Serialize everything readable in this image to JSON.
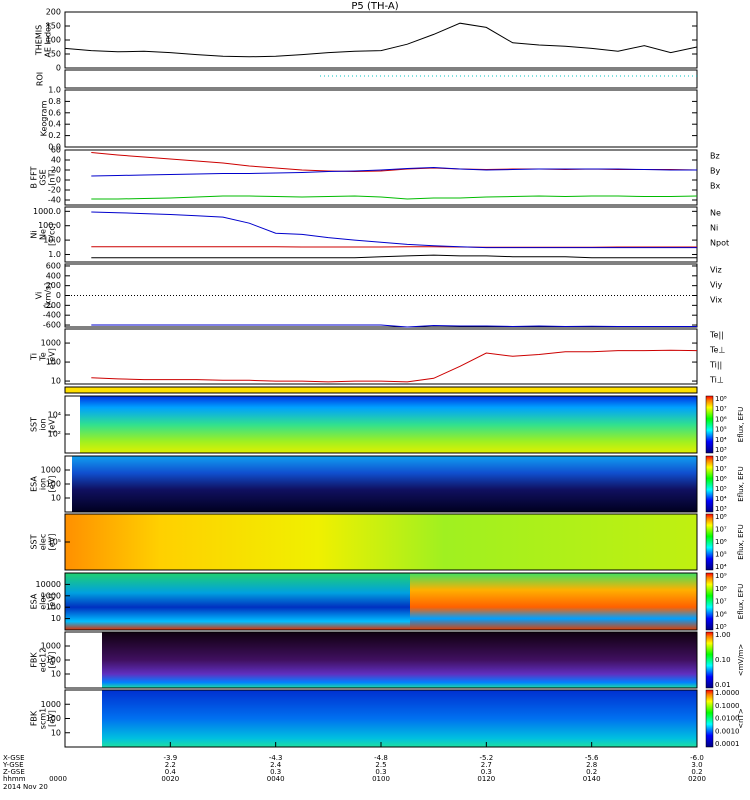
{
  "title": "P5 (TH-A)",
  "roi_label": "ROI",
  "chart_data": [
    {
      "type": "line",
      "ylabel": [
        "THEMIS",
        "AE Index"
      ],
      "ylim": [
        0,
        200
      ],
      "yticks": [
        0,
        50,
        100,
        150,
        200
      ],
      "xlim": [
        0,
        120
      ],
      "x": [
        0,
        5,
        10,
        15,
        20,
        25,
        30,
        35,
        40,
        45,
        50,
        55,
        60,
        65,
        70,
        75,
        80,
        85,
        90,
        95,
        100,
        105,
        110,
        115,
        120
      ],
      "series": [
        {
          "color": "#000000",
          "values": [
            70,
            62,
            58,
            60,
            55,
            48,
            42,
            40,
            42,
            48,
            55,
            60,
            62,
            85,
            120,
            160,
            145,
            90,
            82,
            78,
            70,
            60,
            80,
            55,
            75
          ]
        }
      ]
    },
    {
      "type": "line",
      "ylabel": [
        "Keogram"
      ],
      "ylim": [
        0,
        1
      ],
      "yticks": [
        {
          "value": 0,
          "label": "0.0"
        },
        {
          "value": 0.2,
          "label": "0.2"
        },
        {
          "value": 0.4,
          "label": "0.4"
        },
        {
          "value": 0.6,
          "label": "0.6"
        },
        {
          "value": 0.8,
          "label": "0.8"
        },
        {
          "value": 1,
          "label": "1.0"
        }
      ],
      "xlim": [
        0,
        120
      ],
      "x": [],
      "series": []
    },
    {
      "type": "line",
      "ylabel": [
        "B FFT",
        "GSE",
        "[nT]"
      ],
      "ylim": [
        -50,
        60
      ],
      "yticks": [
        -40,
        -20,
        0,
        20,
        40,
        60
      ],
      "xlim": [
        0,
        120
      ],
      "x": [
        0,
        5,
        10,
        15,
        20,
        25,
        30,
        35,
        40,
        45,
        50,
        55,
        60,
        65,
        70,
        75,
        80,
        85,
        90,
        95,
        100,
        105,
        110,
        115,
        120
      ],
      "series": [
        {
          "name": "Bz",
          "color": "#cc0000",
          "values": [
            null,
            55,
            50,
            46,
            42,
            38,
            34,
            28,
            24,
            20,
            18,
            17,
            18,
            22,
            24,
            22,
            21,
            22,
            22,
            21,
            22,
            21,
            21,
            21,
            20
          ]
        },
        {
          "name": "By",
          "color": "#00bb00",
          "values": [
            null,
            -38,
            -38,
            -37,
            -36,
            -34,
            -32,
            -32,
            -33,
            -34,
            -33,
            -32,
            -34,
            -38,
            -36,
            -36,
            -34,
            -33,
            -32,
            -33,
            -32,
            -32,
            -33,
            -33,
            -32
          ]
        },
        {
          "name": "Bx",
          "color": "#0000cc",
          "values": [
            null,
            8,
            9,
            10,
            11,
            12,
            13,
            13,
            14,
            15,
            17,
            18,
            20,
            23,
            25,
            22,
            20,
            21,
            22,
            22,
            22,
            22,
            21,
            20,
            20
          ]
        }
      ]
    },
    {
      "type": "line",
      "ylabel": [
        "Ni",
        "Ne",
        "[1/cc]"
      ],
      "log": true,
      "ylim": [
        0.3,
        2000
      ],
      "yticks": [
        {
          "value": 1,
          "label": "1.0"
        },
        {
          "value": 10,
          "label": "10.0"
        },
        {
          "value": 100,
          "label": "100.0"
        },
        {
          "value": 1000,
          "label": "1000.0"
        }
      ],
      "xlim": [
        0,
        120
      ],
      "x": [
        0,
        5,
        10,
        15,
        20,
        25,
        30,
        35,
        40,
        45,
        50,
        55,
        60,
        65,
        70,
        75,
        80,
        85,
        90,
        95,
        100,
        105,
        110,
        115,
        120
      ],
      "series": [
        {
          "name": "Ne",
          "color": "#cc0000",
          "values": [
            null,
            3.5,
            3.5,
            3.5,
            3.5,
            3.5,
            3.5,
            3.4,
            3.4,
            3.3,
            3.3,
            3.3,
            3.3,
            3.5,
            3.5,
            3.3,
            3.2,
            3.2,
            3.2,
            3.2,
            3.2,
            3.3,
            3.3,
            3.3,
            3.3
          ]
        },
        {
          "name": "Ni",
          "color": "#000000",
          "values": [
            null,
            0.6,
            0.6,
            0.6,
            0.6,
            0.6,
            0.6,
            0.6,
            0.6,
            0.6,
            0.6,
            0.6,
            0.7,
            0.8,
            0.9,
            0.8,
            0.8,
            0.7,
            0.7,
            0.7,
            0.6,
            0.6,
            0.6,
            0.6,
            0.6
          ]
        },
        {
          "name": "Npot",
          "color": "#0000cc",
          "values": [
            null,
            900,
            800,
            700,
            600,
            500,
            400,
            150,
            30,
            25,
            15,
            10,
            7,
            5,
            4,
            3.5,
            3,
            3,
            3,
            3,
            3,
            3,
            3,
            3,
            3
          ]
        }
      ]
    },
    {
      "type": "line",
      "ylabel": [
        "Vi",
        "[km/s]"
      ],
      "ylim": [
        -640,
        640
      ],
      "yticks": [
        -600,
        -400,
        -200,
        0,
        200,
        400,
        600
      ],
      "zero_line": true,
      "xlim": [
        0,
        120
      ],
      "x": [
        0,
        5,
        10,
        15,
        20,
        25,
        30,
        35,
        40,
        45,
        50,
        55,
        60,
        65,
        70,
        75,
        80,
        85,
        90,
        95,
        100,
        105,
        110,
        115,
        120
      ],
      "series": [
        {
          "name": "Viz",
          "color": "#cc0000",
          "values": [
            null,
            null,
            null,
            null,
            null,
            null,
            null,
            null,
            null,
            null,
            null,
            null,
            null,
            null,
            null,
            null,
            null,
            null,
            null,
            null,
            null,
            null,
            null,
            null,
            null
          ]
        },
        {
          "name": "Viy",
          "color": "#00bb00",
          "values": [
            null,
            null,
            null,
            null,
            null,
            null,
            null,
            null,
            null,
            null,
            null,
            null,
            null,
            null,
            null,
            null,
            null,
            null,
            null,
            null,
            null,
            null,
            null,
            null,
            null
          ]
        },
        {
          "name": "Vix",
          "color": "#0000cc",
          "values": [
            null,
            -600,
            -600,
            -600,
            -600,
            -600,
            -600,
            -600,
            -600,
            -600,
            -600,
            -600,
            -600,
            -640,
            -610,
            -620,
            -620,
            -630,
            -620,
            -630,
            -625,
            -630,
            -630,
            -630,
            -630
          ]
        }
      ]
    },
    {
      "type": "line",
      "ylabel": [
        "Ti",
        "Te",
        "[eV]"
      ],
      "log": true,
      "ylim": [
        7,
        5500
      ],
      "yticks": [
        10,
        100,
        1000
      ],
      "xlim": [
        0,
        120
      ],
      "x": [
        0,
        5,
        10,
        15,
        20,
        25,
        30,
        35,
        40,
        45,
        50,
        55,
        60,
        65,
        70,
        75,
        80,
        85,
        90,
        95,
        100,
        105,
        110,
        115,
        120
      ],
      "series": [
        {
          "name": "Te||",
          "color": "#000000",
          "values": [
            null,
            null,
            null,
            null,
            null,
            null,
            null,
            null,
            null,
            null,
            null,
            null,
            null,
            null,
            null,
            null,
            null,
            null,
            null,
            null,
            null,
            null,
            null,
            null,
            null
          ]
        },
        {
          "name": "Te⊥",
          "color": "#cc0000",
          "values": [
            null,
            15,
            13,
            12,
            12,
            12,
            11,
            11,
            10,
            10,
            9,
            10,
            10,
            9,
            14,
            60,
            300,
            200,
            250,
            350,
            350,
            400,
            400,
            420,
            400
          ]
        },
        {
          "name": "Ti||",
          "color": "#00bb00",
          "values": [
            null,
            null,
            null,
            null,
            null,
            null,
            null,
            null,
            null,
            null,
            null,
            null,
            null,
            null,
            null,
            null,
            null,
            null,
            null,
            null,
            null,
            null,
            null,
            null,
            null
          ]
        },
        {
          "name": "Ti⊥",
          "color": "#0000cc",
          "values": [
            null,
            null,
            null,
            null,
            null,
            null,
            null,
            null,
            null,
            null,
            null,
            null,
            null,
            null,
            null,
            null,
            null,
            null,
            null,
            null,
            null,
            null,
            null,
            null,
            null
          ]
        }
      ]
    }
  ],
  "spectrograms": [
    {
      "ylabel": [
        "SST",
        "ion",
        "[eV]"
      ],
      "yticks": [
        "10⁴",
        "10²"
      ],
      "colorbar_label": "Eflux, EFU",
      "colorbar_ticks": [
        "10⁸",
        "10⁷",
        "10⁶",
        "10⁵",
        "10⁴",
        "10³"
      ]
    },
    {
      "ylabel": [
        "ESA",
        "ion",
        "[eV]"
      ],
      "yticks": [
        "1000",
        "100",
        "10"
      ],
      "colorbar_label": "Eflux, EFU",
      "colorbar_ticks": [
        "10⁸",
        "10⁷",
        "10⁶",
        "10⁵",
        "10⁴",
        "10³"
      ]
    },
    {
      "ylabel": [
        "SST",
        "elec",
        "[eV]"
      ],
      "yticks": [
        "10⁵"
      ],
      "colorbar_label": "Eflux, EFU",
      "colorbar_ticks": [
        "10⁸",
        "10⁷",
        "10⁶",
        "10⁵",
        "10⁴"
      ]
    },
    {
      "ylabel": [
        "ESA",
        "elec",
        "[eV]"
      ],
      "yticks": [
        "10000",
        "1000",
        "100",
        "10"
      ],
      "colorbar_label": "Eflux, EFU",
      "colorbar_ticks": [
        "10⁹",
        "10⁸",
        "10⁷",
        "10⁶",
        "10⁵"
      ]
    },
    {
      "ylabel": [
        "FBK",
        "edc12",
        "[eV]"
      ],
      "yticks": [
        "1000",
        "100",
        "10"
      ],
      "colorbar_label": "<mV/m>",
      "colorbar_ticks": [
        "1.00",
        "0.10",
        "0.01"
      ]
    },
    {
      "ylabel": [
        "FBK",
        "scm1",
        "[eV]"
      ],
      "yticks": [
        "1000",
        "100",
        "10"
      ],
      "colorbar_label": "<nT>",
      "colorbar_ticks": [
        "1.0000",
        "0.1000",
        "0.0100",
        "0.0010",
        "0.0001"
      ]
    }
  ],
  "ephemeris": {
    "row_labels": [
      "X-GSE",
      "Y-GSE",
      "Z-GSE",
      "hhmm"
    ],
    "date": "2014 Nov 20",
    "times": [
      "0000",
      "0020",
      "0040",
      "0100",
      "0120",
      "0140",
      "0200"
    ],
    "x_gse": [
      "-3.9",
      "-4.3",
      "-4.8",
      "-5.2",
      "-5.6",
      "-6.0"
    ],
    "y_gse": [
      "2.2",
      "2.4",
      "2.5",
      "2.7",
      "2.8",
      "3.0"
    ],
    "z_gse": [
      "0.4",
      "0.3",
      "0.3",
      "0.3",
      "0.2",
      "0.2"
    ]
  }
}
